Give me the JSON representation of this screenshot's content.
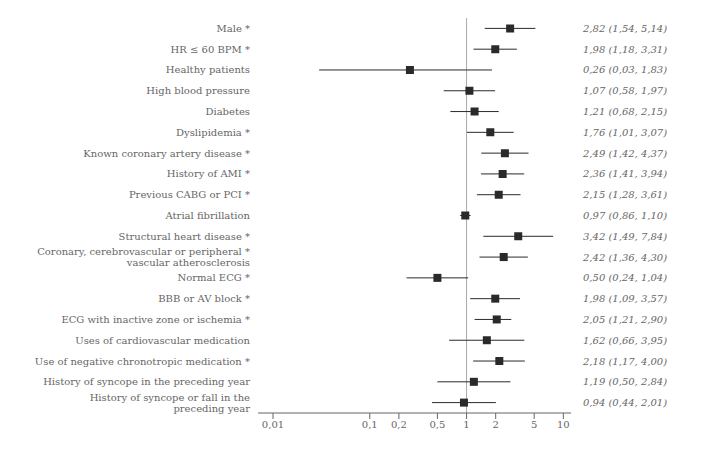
{
  "chart_data": {
    "type": "forest",
    "categories": [
      "Male *",
      "HR ≤ 60 BPM *",
      "Healthy patients",
      "High blood pressure",
      "Diabetes",
      "Dyslipidemia *",
      "Known coronary artery disease *",
      "History of AMI *",
      "Previous CABG or PCI *",
      "Atrial fibrillation",
      "Structural heart disease *",
      "Coronary, cerebrovascular or peripheral *\nvascular atherosclerosis",
      "Normal ECG *",
      "BBB or AV block *",
      "ECG with inactive zone or ischemia *",
      "Uses of cardiovascular medication",
      "Use of negative chronotropic medication *",
      "History of syncope in the preceding year",
      "History of syncope or fall in the\npreceding year"
    ],
    "values": [
      2.82,
      1.98,
      0.26,
      1.07,
      1.21,
      1.76,
      2.49,
      2.36,
      2.15,
      0.97,
      3.42,
      2.42,
      0.5,
      1.98,
      2.05,
      1.62,
      2.18,
      1.19,
      0.94
    ],
    "ci_lo": [
      1.54,
      1.18,
      0.03,
      0.58,
      0.68,
      1.01,
      1.42,
      1.41,
      1.28,
      0.86,
      1.49,
      1.36,
      0.24,
      1.09,
      1.21,
      0.66,
      1.17,
      0.5,
      0.44
    ],
    "ci_hi": [
      5.14,
      3.31,
      1.83,
      1.97,
      2.15,
      3.07,
      4.37,
      3.94,
      3.61,
      1.1,
      7.84,
      4.3,
      1.04,
      3.57,
      2.9,
      3.95,
      4.0,
      2.84,
      2.01
    ],
    "value_labels": [
      "2,82 (1,54, 5,14)",
      "1,98 (1,18, 3,31)",
      "0,26 (0,03, 1,83)",
      "1,07 (0,58, 1,97)",
      "1,21 (0,68, 2,15)",
      "1,76 (1,01, 3,07)",
      "2,49 (1,42, 4,37)",
      "2,36 (1,41, 3,94)",
      "2,15 (1,28, 3,61)",
      "0,97 (0,86, 1,10)",
      "3,42 (1,49, 7,84)",
      "2,42 (1,36, 4,30)",
      "0,50 (0,24, 1,04)",
      "1,98 (1,09, 3,57)",
      "2,05 (1,21, 2,90)",
      "1,62 (0,66, 3,95)",
      "2,18 (1,17, 4,00)",
      "1,19 (0,50, 2,84)",
      "0,94 (0,44, 2,01)"
    ],
    "reference_line": 1,
    "color": "#2a2a2a",
    "xlim": [
      0.007,
      12
    ],
    "xticks": [
      {
        "value": 0.01,
        "label": "0,01"
      },
      {
        "value": 0.1,
        "label": "0,1"
      },
      {
        "value": 0.2,
        "label": "0,2"
      },
      {
        "value": 0.5,
        "label": "0,5"
      },
      1,
      2,
      5,
      10
    ],
    "log": "x",
    "grid": false
  }
}
